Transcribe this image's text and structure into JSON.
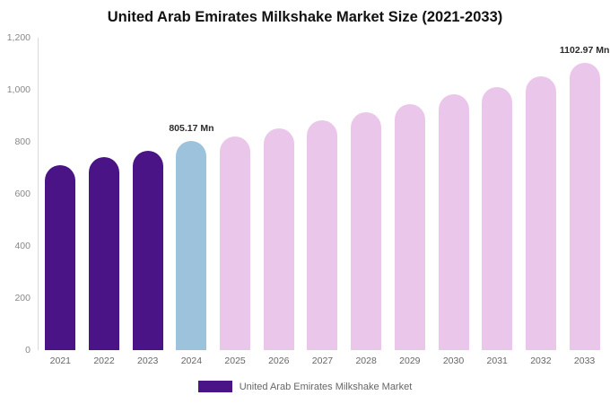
{
  "title": "United Arab Emirates Milkshake Market Size (2021-2033)",
  "y_axis": {
    "ticks": [
      "1,200",
      "1,000",
      "800",
      "600",
      "400",
      "200",
      "0"
    ]
  },
  "legend": {
    "label": "United Arab Emirates Milkshake Market",
    "swatch_color": "#4a1486"
  },
  "chart_data": {
    "type": "bar",
    "title": "United Arab Emirates Milkshake Market Size (2021-2033)",
    "categories": [
      "2021",
      "2022",
      "2023",
      "2024",
      "2025",
      "2026",
      "2027",
      "2028",
      "2029",
      "2030",
      "2031",
      "2032",
      "2033"
    ],
    "values": [
      710,
      740,
      765,
      805.17,
      820,
      852,
      882,
      915,
      945,
      982,
      1012,
      1052,
      1102.97
    ],
    "unit": "Mn",
    "xlabel": "",
    "ylabel": "",
    "ylim": [
      0,
      1200
    ],
    "grid": false,
    "legend_position": "bottom",
    "colors": [
      "#4a1486",
      "#4a1486",
      "#4a1486",
      "#9cc2dc",
      "#eac7ea",
      "#eac7ea",
      "#eac7ea",
      "#eac7ea",
      "#eac7ea",
      "#eac7ea",
      "#eac7ea",
      "#eac7ea",
      "#eac7ea"
    ],
    "data_labels": [
      {
        "index": 3,
        "text": "805.17 Mn"
      },
      {
        "index": 12,
        "text": "1102.97 Mn"
      }
    ]
  }
}
